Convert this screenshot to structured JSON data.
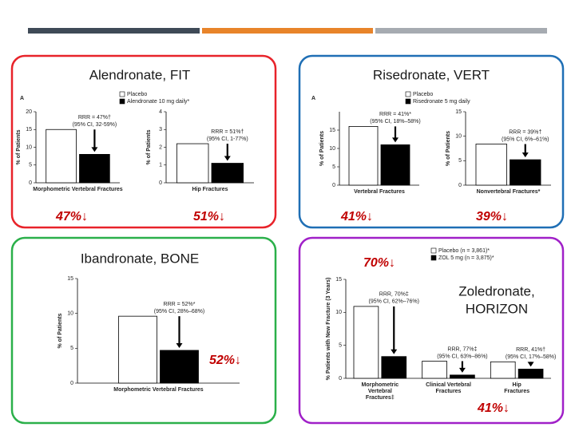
{
  "panels": [
    {
      "title": [
        "Alendronate, FIT"
      ],
      "border": "#e8232a",
      "panel_label": "A",
      "legend": [
        "Placebo",
        "Alendronate 10 mg daily*"
      ],
      "highlights": [
        "47%↓",
        "51%↓"
      ],
      "charts": [
        {
          "type": "bar",
          "y_label": "% of Patients",
          "categories": [
            "Morphometric Vertebral Fractures"
          ],
          "colors": [
            "#ffffff",
            "#000000"
          ],
          "values": [
            [
              15,
              8
            ]
          ],
          "ylim": [
            0,
            20
          ],
          "yticks": [
            0,
            5,
            10,
            15,
            20
          ],
          "annotations": [
            [
              "RRR = 47%†",
              "(95% CI, 32-59%)"
            ]
          ]
        },
        {
          "type": "bar",
          "y_label": "% of Patients",
          "categories": [
            "Hip Fractures"
          ],
          "colors": [
            "#ffffff",
            "#000000"
          ],
          "values": [
            [
              2.2,
              1.1
            ]
          ],
          "ylim": [
            0,
            4
          ],
          "yticks": [
            0,
            1,
            2,
            3,
            4
          ],
          "annotations": [
            [
              "RRR = 51%†",
              "(95% CI, 1-77%)"
            ]
          ]
        }
      ]
    },
    {
      "title": [
        "Risedronate, VERT"
      ],
      "border": "#1f6fb5",
      "panel_label": "A",
      "legend": [
        "Placebo",
        "Risedronate 5 mg daily"
      ],
      "highlights": [
        "41%↓",
        "39%↓"
      ],
      "charts": [
        {
          "type": "bar",
          "y_label": "% of Patients",
          "categories": [
            "Vertebral Fractures"
          ],
          "colors": [
            "#ffffff",
            "#000000"
          ],
          "values": [
            [
              16,
              11
            ]
          ],
          "ylim": [
            0,
            20
          ],
          "yticks": [
            0,
            5,
            10,
            15
          ],
          "annotations": [
            [
              "RRR = 41%*",
              "(95% CI, 18%–58%)"
            ]
          ]
        },
        {
          "type": "bar",
          "y_label": "% of Patients",
          "categories": [
            "Nonvertebral Fractures*"
          ],
          "colors": [
            "#ffffff",
            "#000000"
          ],
          "values": [
            [
              8.4,
              5.2
            ]
          ],
          "ylim": [
            0,
            15
          ],
          "yticks": [
            0,
            5,
            10,
            15
          ],
          "annotations": [
            [
              "RRR = 39%†",
              "(95% CI, 6%–61%)"
            ]
          ]
        }
      ]
    },
    {
      "title": [
        "Ibandronate, BONE"
      ],
      "border": "#2bb04a",
      "highlights": [
        "52%↓"
      ],
      "charts": [
        {
          "type": "bar",
          "y_label": "% of Patients",
          "categories": [
            "Morphometric Vertebral Fractures"
          ],
          "colors": [
            "#ffffff",
            "#000000"
          ],
          "values": [
            [
              9.6,
              4.7
            ]
          ],
          "ylim": [
            0,
            15
          ],
          "yticks": [
            0,
            5,
            10,
            15
          ],
          "annotations": [
            [
              "RRR = 52%*",
              "(95% CI, 28%–68%)"
            ]
          ]
        }
      ]
    },
    {
      "title": [
        "Zoledronate,",
        "HORIZON"
      ],
      "border": "#a020c8",
      "legend": [
        "Placebo (n = 3,861)*",
        "ZOL 5 mg (n = 3,875)*"
      ],
      "highlights": [
        "70%↓",
        "41%↓"
      ],
      "charts": [
        {
          "type": "bar",
          "y_label": "% Patients with New Fracture (3 Years)",
          "categories": [
            [
              "Morphometric",
              "Vertebral",
              "Fractures‡"
            ],
            [
              "Clinical Vertebral",
              "Fractures"
            ],
            [
              "Hip",
              "Fractures"
            ]
          ],
          "colors": [
            "#ffffff",
            "#000000"
          ],
          "values": [
            [
              10.9,
              3.3
            ],
            [
              2.6,
              0.5
            ],
            [
              2.5,
              1.4
            ]
          ],
          "ylim": [
            0,
            15
          ],
          "yticks": [
            0,
            5,
            10,
            15
          ],
          "annotations": [
            [
              "RRR, 70%‡",
              "(95% CI, 62%–76%)"
            ],
            [
              "RRR, 77%‡",
              "(95% CI, 63%–86%)"
            ],
            [
              "RRR, 41%†",
              "(95% CI, 17%–58%)"
            ]
          ]
        }
      ]
    }
  ]
}
